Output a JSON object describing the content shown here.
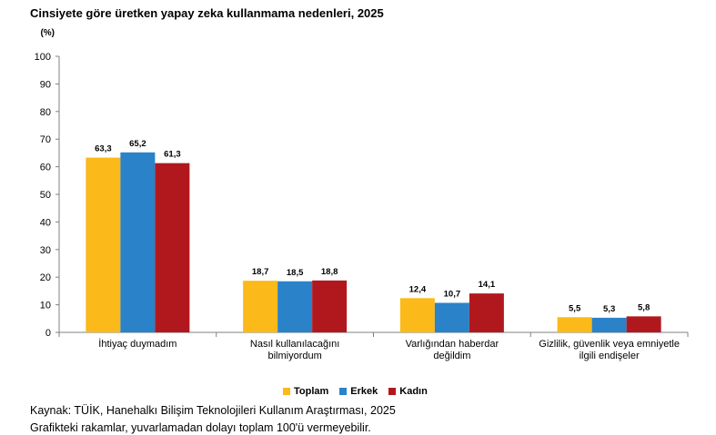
{
  "chart_data": {
    "type": "bar",
    "title": "Cinsiyete göre üretken yapay zeka kullanmama nedenleri, 2025",
    "ylabel": "(%)",
    "xlabel": "",
    "ylim": [
      0,
      100
    ],
    "yticks": [
      0,
      10,
      20,
      30,
      40,
      50,
      60,
      70,
      80,
      90,
      100
    ],
    "grid": false,
    "legend_position": "bottom",
    "categories": [
      [
        "İhtiyaç duymadım"
      ],
      [
        "Nasıl kullanılacağını",
        "bilmiyordum"
      ],
      [
        "Varlığından haberdar",
        "değildim"
      ],
      [
        "Gizlilik, güvenlik veya emniyetle",
        "ilgili endişeler"
      ]
    ],
    "series": [
      {
        "name": "Toplam",
        "color": "#FBB91A",
        "values": [
          63.3,
          18.7,
          12.4,
          5.5
        ],
        "labels": [
          "63,3",
          "18,7",
          "12,4",
          "5,5"
        ]
      },
      {
        "name": "Erkek",
        "color": "#2A82C9",
        "values": [
          65.2,
          18.5,
          10.7,
          5.3
        ],
        "labels": [
          "65,2",
          "18,5",
          "10,7",
          "5,3"
        ]
      },
      {
        "name": "Kadın",
        "color": "#B1181E",
        "values": [
          61.3,
          18.8,
          14.1,
          5.8
        ],
        "labels": [
          "61,3",
          "18,8",
          "14,1",
          "5,8"
        ]
      }
    ]
  },
  "notes": {
    "source": "Kaynak: TÜİK, Hanehalkı Bilişim Teknolojileri Kullanım Araştırması, 2025",
    "rounding": "Grafikteki rakamlar, yuvarlamadan dolayı toplam 100'ü vermeyebilir."
  }
}
